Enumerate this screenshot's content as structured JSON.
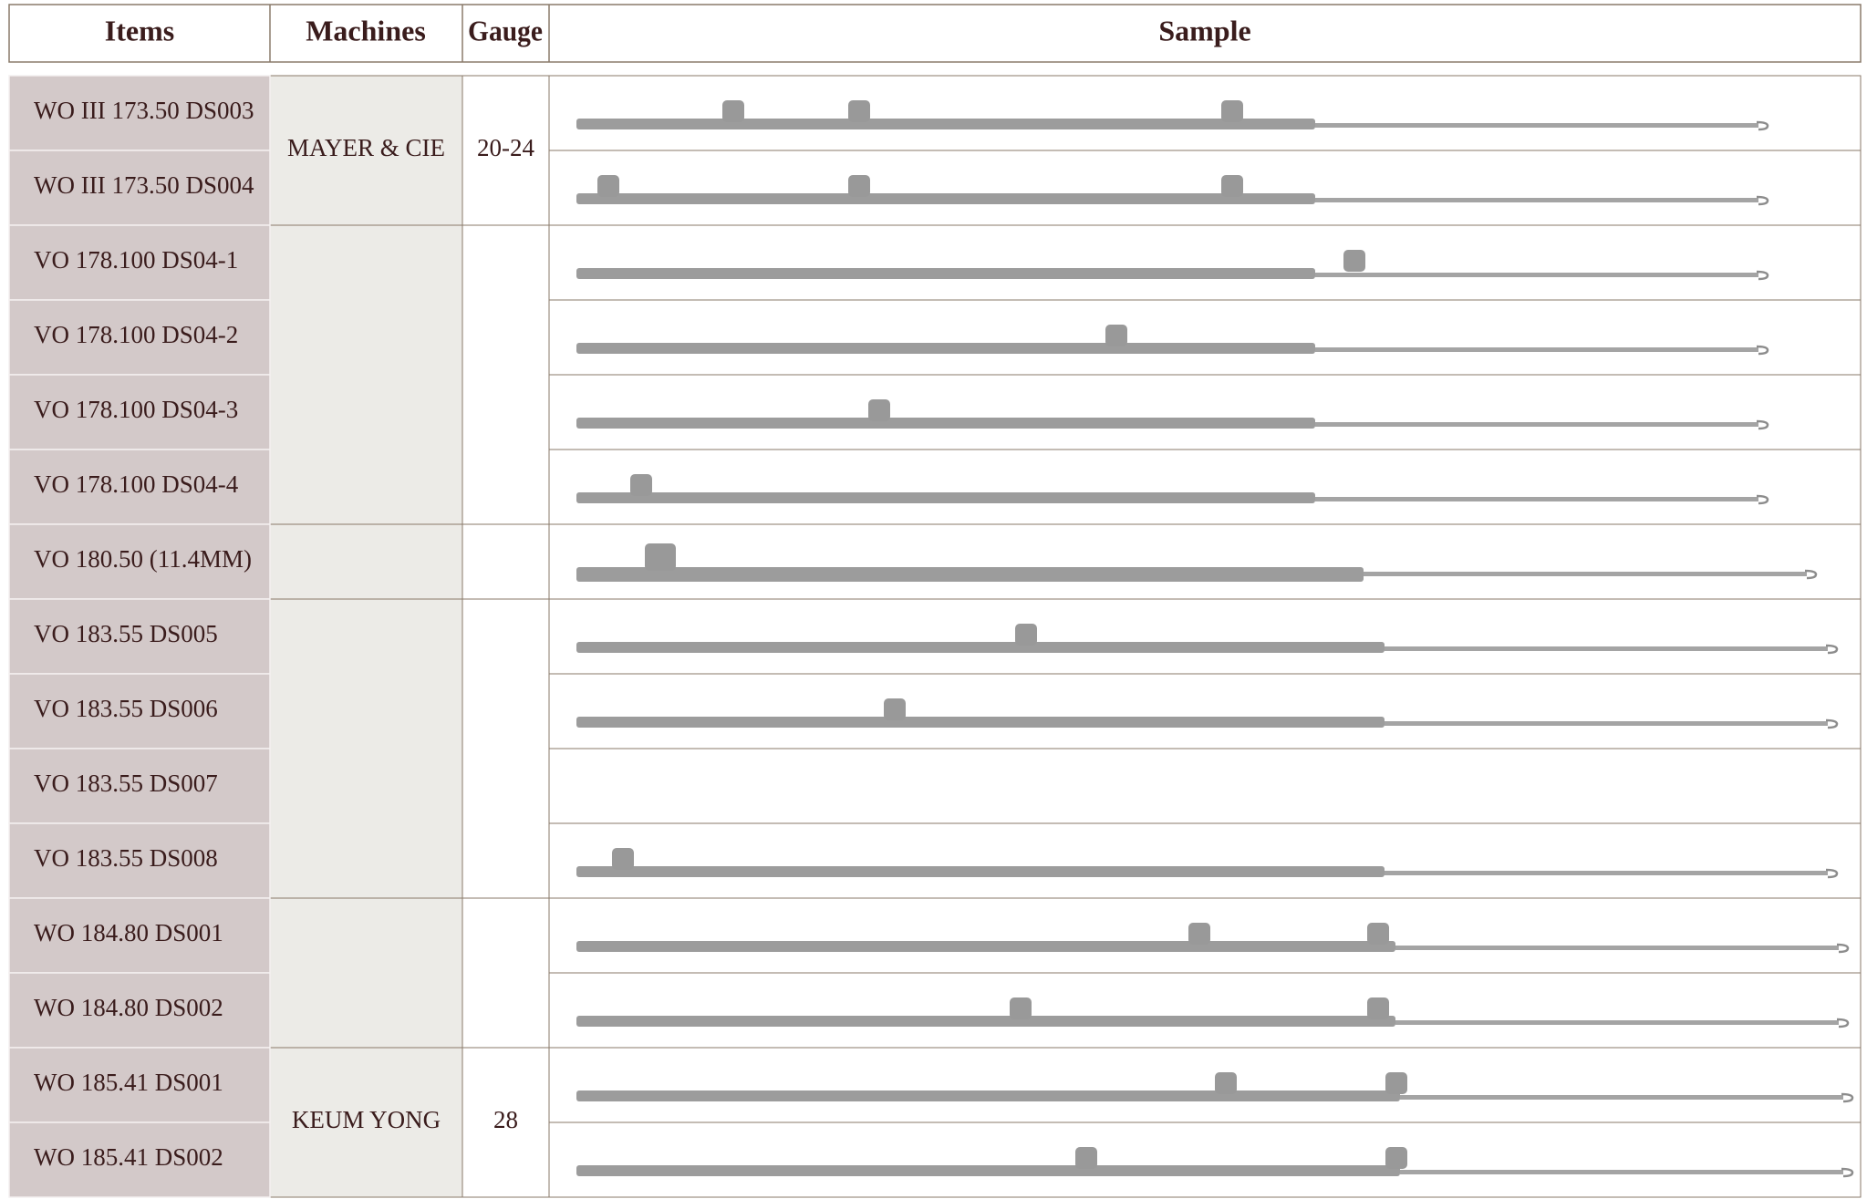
{
  "header": {
    "columns": [
      "Items",
      "Machines",
      "Gauge",
      "Sample"
    ]
  },
  "groups": [
    {
      "machine": "MAYER & CIE",
      "gauge": "20-24",
      "items": [
        "WO III 173.50 DS003",
        "WO III 173.50 DS004"
      ]
    },
    {
      "items": [
        "VO 178.100 DS04-1",
        "VO 178.100 DS04-2",
        "VO 178.100 DS04-3",
        "VO 178.100 DS04-4"
      ]
    },
    {
      "items": [
        "VO 180.50 (11.4MM)"
      ]
    },
    {
      "items": [
        "VO 183.55 DS005",
        "VO 183.55 DS006",
        "VO 183.55 DS007",
        "VO 183.55 DS008"
      ]
    },
    {
      "items": [
        "WO 184.80 DS001",
        "WO 184.80 DS002"
      ]
    },
    {
      "machine": "KEUM YONG",
      "gauge": "28",
      "items": [
        "WO 185.41 DS001",
        "WO 185.41 DS002"
      ]
    }
  ]
}
